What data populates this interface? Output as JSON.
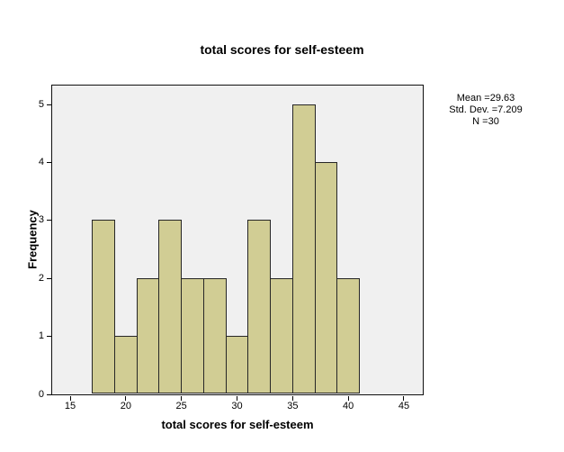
{
  "title": "total scores for self-esteem",
  "stats": {
    "mean_label": "Mean =29.63",
    "stddev_label": "Std. Dev. =7.209",
    "n_label": "N =30"
  },
  "chart_data": {
    "type": "bar",
    "subtype": "histogram",
    "title": "total scores for self-esteem",
    "xlabel": "total scores for self-esteem",
    "ylabel": "Frequency",
    "bin_edges": [
      17,
      19,
      21,
      23,
      25,
      27,
      29,
      31,
      33,
      35,
      37,
      39,
      41
    ],
    "values": [
      3,
      1,
      2,
      3,
      2,
      2,
      1,
      3,
      2,
      5,
      4,
      2
    ],
    "n_total": 30,
    "x_ticks": [
      15,
      20,
      25,
      30,
      35,
      40,
      45
    ],
    "y_ticks": [
      0,
      1,
      2,
      3,
      4,
      5
    ],
    "xlim": [
      13.38,
      46.7
    ],
    "ylim": [
      0,
      5.33
    ],
    "grid": false,
    "legend_position": "right",
    "annotations": [
      "Mean =29.63",
      "Std. Dev. =7.209",
      "N =30"
    ],
    "colors": {
      "bar_fill": "#d1cd94",
      "bar_stroke": "#262626",
      "plot_bg": "#f0f0f0",
      "plot_border": "#101010",
      "figure_bg": "#ffffff",
      "text": "#000000"
    }
  }
}
